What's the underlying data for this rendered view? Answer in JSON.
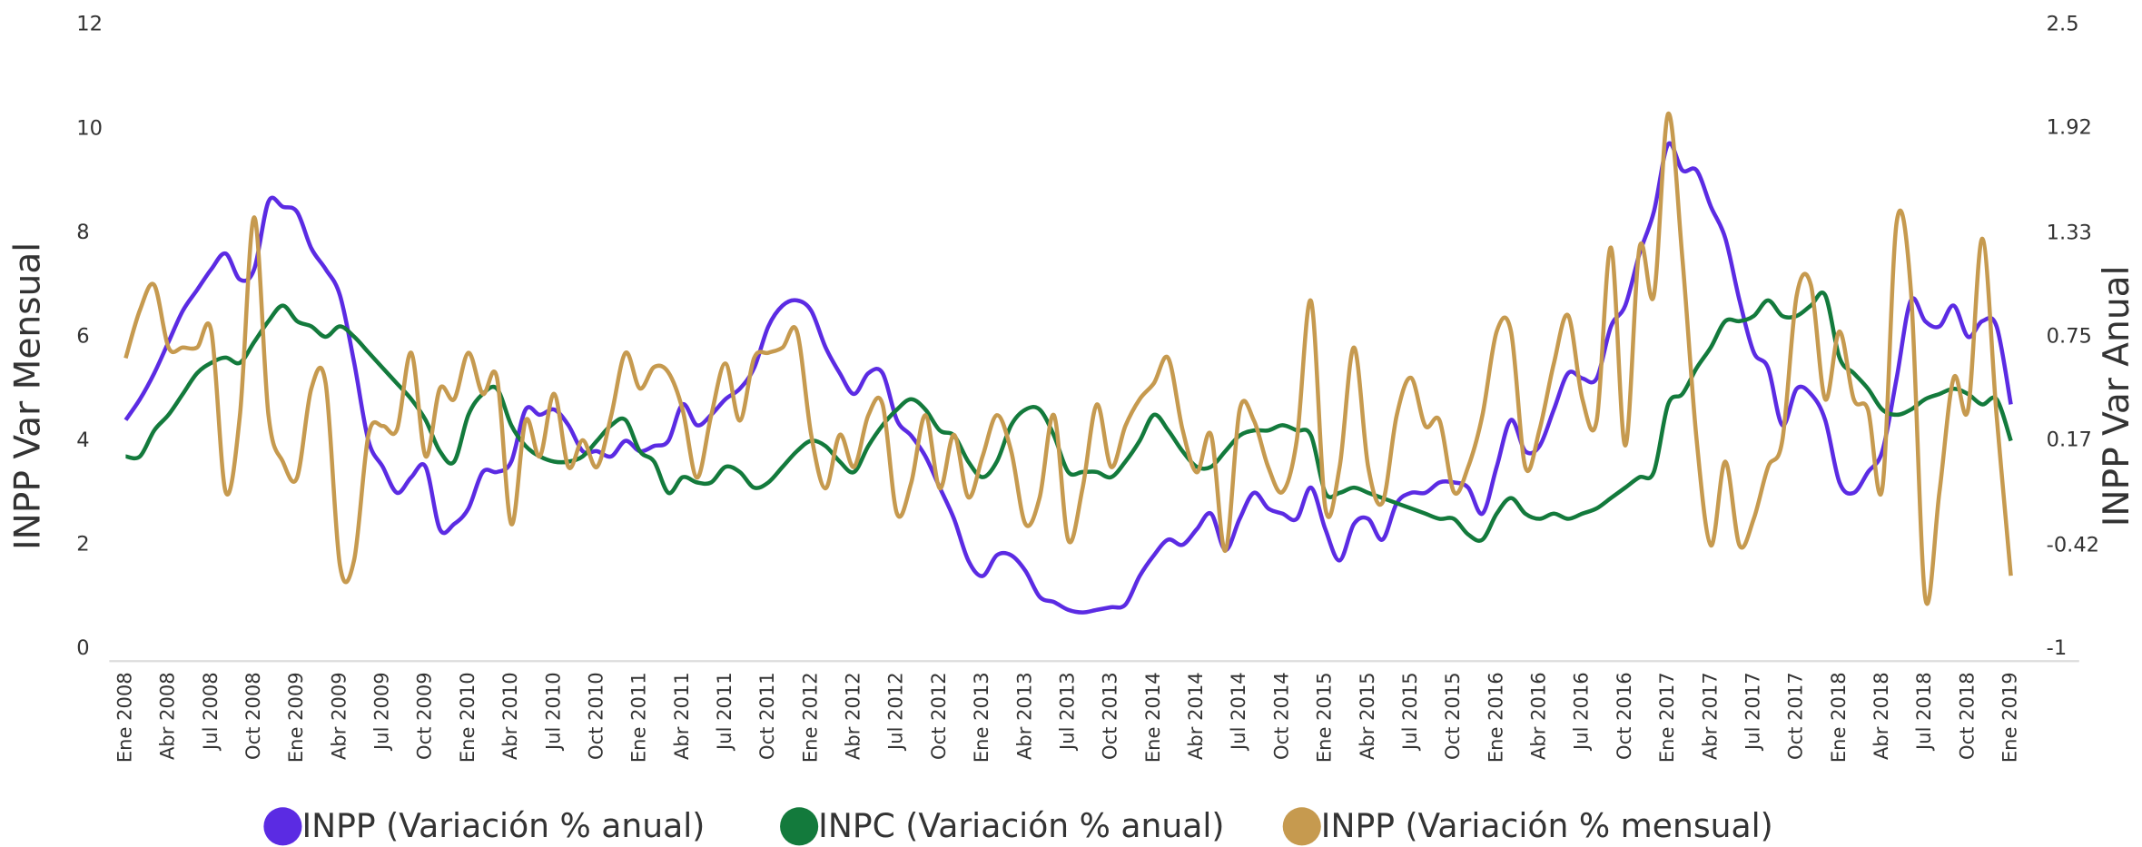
{
  "chart_data": {
    "type": "line",
    "categories": [
      "Ene 2008",
      null,
      null,
      "Abr 2008",
      null,
      null,
      "Jul 2008",
      null,
      null,
      "Oct 2008",
      null,
      null,
      "Ene 2009",
      null,
      null,
      "Abr 2009",
      null,
      null,
      "Jul 2009",
      null,
      null,
      "Oct 2009",
      null,
      null,
      "Ene 2010",
      null,
      null,
      "Abr 2010",
      null,
      null,
      "Jul 2010",
      null,
      null,
      "Oct 2010",
      null,
      null,
      "Ene 2011",
      null,
      null,
      "Abr 2011",
      null,
      null,
      "Jul 2011",
      null,
      null,
      "Oct 2011",
      null,
      null,
      "Ene 2012",
      null,
      null,
      "Abr 2012",
      null,
      null,
      "Jul 2012",
      null,
      null,
      "Oct 2012",
      null,
      null,
      "Ene 2013",
      null,
      null,
      "Abr 2013",
      null,
      null,
      "Jul 2013",
      null,
      null,
      "Oct 2013",
      null,
      null,
      "Ene 2014",
      null,
      null,
      "Abr 2014",
      null,
      null,
      "Jul 2014",
      null,
      null,
      "Oct 2014",
      null,
      null,
      "Ene 2015",
      null,
      null,
      "Abr 2015",
      null,
      null,
      "Jul 2015",
      null,
      null,
      "Oct 2015",
      null,
      null,
      "Ene 2016",
      null,
      null,
      "Abr 2016",
      null,
      null,
      "Jul 2016",
      null,
      null,
      "Oct 2016",
      null,
      null,
      "Ene 2017",
      null,
      null,
      "Abr 2017",
      null,
      null,
      "Jul 2017",
      null,
      null,
      "Oct 2017",
      null,
      null,
      "Ene 2018",
      null,
      null,
      "Abr 2018",
      null,
      null,
      "Jul 2018",
      null,
      null,
      "Oct 2018",
      null,
      null,
      "Ene 2019"
    ],
    "series": [
      {
        "name": "INPP (Variación % anual)",
        "color": "#5b2be3",
        "values": [
          4.4,
          4.8,
          5.3,
          5.9,
          6.5,
          6.9,
          7.3,
          7.6,
          7.1,
          7.3,
          8.6,
          8.5,
          8.4,
          7.7,
          7.3,
          6.8,
          5.5,
          4.0,
          3.5,
          3.0,
          3.3,
          3.5,
          2.3,
          2.4,
          2.7,
          3.4,
          3.4,
          3.6,
          4.6,
          4.5,
          4.6,
          4.3,
          3.8,
          3.8,
          3.7,
          4.0,
          3.8,
          3.9,
          4.0,
          4.7,
          4.3,
          4.5,
          4.8,
          5.0,
          5.4,
          6.2,
          6.6,
          6.7,
          6.5,
          5.8,
          5.3,
          4.9,
          5.3,
          5.3,
          4.4,
          4.1,
          3.7,
          3.1,
          2.5,
          1.7,
          1.4,
          1.8,
          1.8,
          1.5,
          1.0,
          0.9,
          0.75,
          0.7,
          0.75,
          0.8,
          0.85,
          1.4,
          1.8,
          2.1,
          2.0,
          2.3,
          2.6,
          1.9,
          2.5,
          3.0,
          2.7,
          2.6,
          2.5,
          3.1,
          2.3,
          1.7,
          2.4,
          2.5,
          2.1,
          2.8,
          3.0,
          3.0,
          3.2,
          3.2,
          3.1,
          2.6,
          3.5,
          4.4,
          3.8,
          3.9,
          4.6,
          5.3,
          5.2,
          5.2,
          6.2,
          6.6,
          7.6,
          8.4,
          9.7,
          9.2,
          9.2,
          8.5,
          7.9,
          6.7,
          5.7,
          5.4,
          4.3,
          5.0,
          4.9,
          4.4,
          3.2,
          3.0,
          3.4,
          3.8,
          5.2,
          6.7,
          6.3,
          6.2,
          6.6,
          6.0,
          6.3,
          6.2,
          4.7
        ]
      },
      {
        "name": "INPC (Variación % anual)",
        "color": "#137a3c",
        "values": [
          3.7,
          3.7,
          4.2,
          4.5,
          4.9,
          5.3,
          5.5,
          5.6,
          5.5,
          5.9,
          6.3,
          6.6,
          6.3,
          6.2,
          6.0,
          6.2,
          6.0,
          5.7,
          5.4,
          5.1,
          4.8,
          4.4,
          3.8,
          3.6,
          4.5,
          4.9,
          5.0,
          4.3,
          3.9,
          3.7,
          3.6,
          3.6,
          3.7,
          4.0,
          4.3,
          4.4,
          3.8,
          3.6,
          3.0,
          3.3,
          3.2,
          3.2,
          3.5,
          3.4,
          3.1,
          3.2,
          3.5,
          3.8,
          4.0,
          3.9,
          3.6,
          3.4,
          3.9,
          4.3,
          4.6,
          4.8,
          4.6,
          4.2,
          4.1,
          3.6,
          3.3,
          3.6,
          4.3,
          4.6,
          4.6,
          4.1,
          3.4,
          3.4,
          3.4,
          3.3,
          3.6,
          4.0,
          4.5,
          4.2,
          3.8,
          3.5,
          3.5,
          3.8,
          4.1,
          4.2,
          4.2,
          4.3,
          4.2,
          4.1,
          3.0,
          3.0,
          3.1,
          3.0,
          2.9,
          2.8,
          2.7,
          2.6,
          2.5,
          2.5,
          2.2,
          2.1,
          2.6,
          2.9,
          2.6,
          2.5,
          2.6,
          2.5,
          2.6,
          2.7,
          2.9,
          3.1,
          3.3,
          3.4,
          4.7,
          4.9,
          5.4,
          5.8,
          6.3,
          6.3,
          6.4,
          6.7,
          6.4,
          6.4,
          6.6,
          6.8,
          5.6,
          5.3,
          5.0,
          4.6,
          4.5,
          4.6,
          4.8,
          4.9,
          5.0,
          4.9,
          4.7,
          4.8,
          4.0
        ]
      },
      {
        "name": "INPP (Variación % mensual)",
        "color": "#c69a4f",
        "axis": "y2",
        "values": [
          0.63,
          0.9,
          1.04,
          0.69,
          0.69,
          0.69,
          0.78,
          -0.12,
          0.31,
          1.42,
          0.31,
          0.05,
          -0.04,
          0.46,
          0.49,
          -0.53,
          -0.5,
          0.2,
          0.25,
          0.23,
          0.66,
          0.08,
          0.46,
          0.4,
          0.66,
          0.43,
          0.52,
          -0.3,
          0.28,
          0.08,
          0.43,
          0.02,
          0.17,
          0.02,
          0.31,
          0.66,
          0.46,
          0.58,
          0.55,
          0.34,
          -0.04,
          0.31,
          0.6,
          0.28,
          0.63,
          0.66,
          0.69,
          0.78,
          0.2,
          -0.1,
          0.2,
          0.02,
          0.31,
          0.37,
          -0.24,
          -0.07,
          0.31,
          -0.1,
          0.2,
          -0.15,
          0.08,
          0.31,
          0.11,
          -0.3,
          -0.15,
          0.31,
          -0.39,
          -0.1,
          0.37,
          0.02,
          0.25,
          0.4,
          0.49,
          0.63,
          0.23,
          -0.01,
          0.2,
          -0.45,
          0.34,
          0.28,
          0.02,
          -0.12,
          0.17,
          0.95,
          -0.21,
          0.02,
          0.69,
          0.02,
          -0.18,
          0.31,
          0.52,
          0.25,
          0.28,
          -0.12,
          0.02,
          0.31,
          0.78,
          0.78,
          0.02,
          0.23,
          0.6,
          0.87,
          0.4,
          0.28,
          1.25,
          0.14,
          1.25,
          0.98,
          2.0,
          1.19,
          0.17,
          -0.42,
          0.05,
          -0.42,
          -0.27,
          0.02,
          0.17,
          0.98,
          1.04,
          0.4,
          0.78,
          0.4,
          0.34,
          -0.1,
          1.39,
          1.01,
          -0.71,
          -0.12,
          0.52,
          0.34,
          1.3,
          0.31,
          -0.59
        ]
      }
    ],
    "ylabel": "INPP Var Mensual",
    "y2label": "INPP Var Anual",
    "ylim": [
      0,
      12
    ],
    "yticks": [
      0,
      2,
      4,
      6,
      8,
      10,
      12
    ],
    "y2lim": [
      -1,
      2.5
    ],
    "y2ticks": [
      -1,
      -0.42,
      0.17,
      0.75,
      1.33,
      1.92,
      2.5
    ],
    "grid": false,
    "legend": "bottom"
  }
}
